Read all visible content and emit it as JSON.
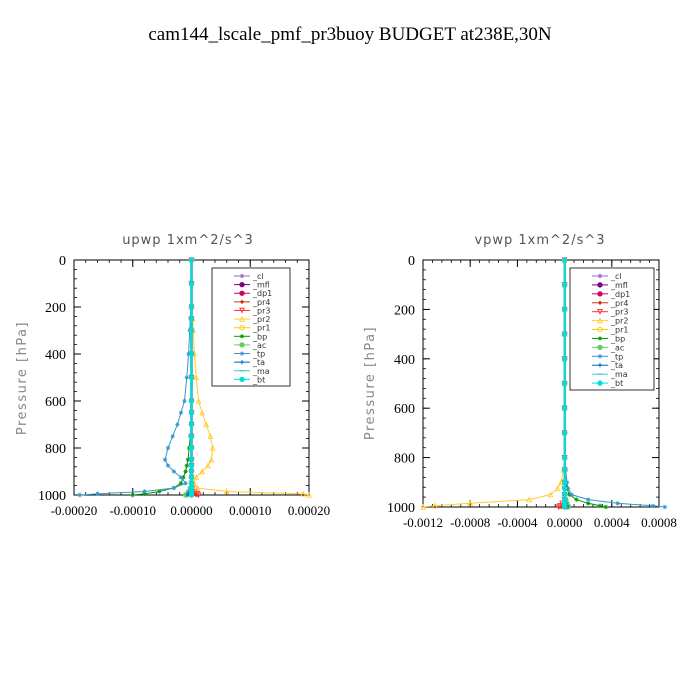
{
  "page_title": "cam144_lscale_pmf_pr3buoy  BUDGET at238E,30N",
  "chart_data": [
    {
      "type": "line",
      "title": "upwp   1xm^2/s^3",
      "ylabel": "Pressure [hPa]",
      "xlabel": "",
      "xlim": [
        -0.0002,
        0.0002
      ],
      "ylim": [
        1000,
        0
      ],
      "xticks": [
        -0.0002,
        -0.0001,
        0.0,
        0.0001,
        0.0002
      ],
      "xtick_labels": [
        "-0.00020",
        "-0.00010",
        "0.00000",
        "0.00010",
        "0.00020"
      ],
      "yticks": [
        0,
        200,
        400,
        600,
        800,
        1000
      ],
      "ytick_labels": [
        "0",
        "200",
        "400",
        "600",
        "800",
        "1000"
      ],
      "grid": false,
      "legend_position": "top-right",
      "y": [
        0,
        100,
        200,
        250,
        300,
        400,
        500,
        600,
        650,
        700,
        750,
        800,
        850,
        875,
        900,
        925,
        950,
        970,
        985,
        995,
        1000
      ],
      "series": [
        {
          "name": "_cl",
          "color": "#9966cc",
          "marker": "star",
          "values": [
            0,
            0,
            0,
            0,
            0,
            0,
            0,
            0,
            0,
            0,
            0,
            0,
            0,
            0,
            0,
            0,
            0,
            0,
            0,
            0,
            0
          ]
        },
        {
          "name": "_mfl",
          "color": "#800080",
          "marker": "circle",
          "values": [
            0,
            0,
            0,
            0,
            0,
            0,
            0,
            0,
            0,
            0,
            0,
            0,
            0,
            0,
            0,
            0,
            0,
            0,
            0,
            0,
            0
          ]
        },
        {
          "name": "_dp1",
          "color": "#cc0066",
          "marker": "circle",
          "values": [
            0,
            0,
            0,
            0,
            0,
            0,
            0,
            0,
            0,
            0,
            0,
            0,
            0,
            0,
            0,
            0,
            0,
            0,
            0,
            0,
            0
          ]
        },
        {
          "name": "_pr4",
          "color": "#cc3300",
          "marker": "diamond",
          "values": [
            0,
            0,
            0,
            0,
            0,
            0,
            0,
            0,
            0,
            0,
            0,
            0,
            0,
            0,
            0,
            0,
            0,
            0,
            2e-06,
            5e-06,
            8e-06
          ]
        },
        {
          "name": "_pr3",
          "color": "#ff3333",
          "marker": "triangle-down",
          "values": [
            0,
            0,
            0,
            0,
            0,
            0,
            0,
            0,
            0,
            0,
            0,
            0,
            0,
            0,
            0,
            0,
            0,
            2e-06,
            6e-06,
            1e-05,
            1.2e-05
          ]
        },
        {
          "name": "_pr2",
          "color": "#ffcc33",
          "marker": "triangle-up",
          "values": [
            0,
            0,
            0,
            2e-06,
            3e-06,
            5e-06,
            8e-06,
            1.2e-05,
            1.8e-05,
            2.5e-05,
            3.2e-05,
            3.6e-05,
            3.4e-05,
            2.8e-05,
            1.8e-05,
            8e-06,
            4e-06,
            1e-05,
            6e-05,
            0.00019,
            0.0002
          ]
        },
        {
          "name": "_pr1",
          "color": "#ffcc00",
          "marker": "circle-open",
          "values": [
            0,
            0,
            0,
            0,
            0,
            0,
            0,
            0,
            0,
            0,
            0,
            0,
            0,
            0,
            0,
            0,
            0,
            0,
            0,
            0,
            0
          ]
        },
        {
          "name": "_bp",
          "color": "#009900",
          "marker": "star",
          "values": [
            0,
            0,
            0,
            0,
            0,
            0,
            0,
            0,
            0,
            0,
            -2e-06,
            -4e-06,
            -6e-06,
            -8e-06,
            -1e-05,
            -1.4e-05,
            -1.8e-05,
            -3e-05,
            -5.5e-05,
            -8e-05,
            -0.0001
          ]
        },
        {
          "name": "_ac",
          "color": "#66cc66",
          "marker": "circle",
          "values": [
            0,
            0,
            0,
            0,
            0,
            0,
            0,
            0,
            0,
            0,
            0,
            0,
            0,
            0,
            0,
            0,
            0,
            -2e-06,
            -5e-06,
            -8e-06,
            -1e-05
          ]
        },
        {
          "name": "_tp",
          "color": "#3399cc",
          "marker": "star",
          "values": [
            0,
            0,
            -1e-06,
            -2e-06,
            -3e-06,
            -5e-06,
            -8e-06,
            -1.2e-05,
            -1.8e-05,
            -2.4e-05,
            -3.2e-05,
            -4e-05,
            -4.5e-05,
            -4e-05,
            -3e-05,
            -1.8e-05,
            -1e-05,
            -3e-05,
            -8e-05,
            -0.00016,
            -0.00019
          ]
        },
        {
          "name": "_ta",
          "color": "#0066cc",
          "marker": "plus",
          "values": [
            0,
            0,
            0,
            0,
            0,
            0,
            0,
            0,
            0,
            0,
            0,
            0,
            0,
            0,
            0,
            0,
            0,
            -1e-06,
            -3e-06,
            -5e-06,
            -6e-06
          ]
        },
        {
          "name": "_ma",
          "color": "#33cccc",
          "marker": "dash",
          "values": [
            0,
            0,
            0,
            0,
            0,
            0,
            0,
            0,
            0,
            0,
            0,
            0,
            0,
            0,
            0,
            0,
            0,
            0,
            0,
            0,
            0
          ]
        },
        {
          "name": "_bt",
          "color": "#00dddd",
          "marker": "circle",
          "values": [
            0,
            0,
            0,
            0,
            0,
            0,
            0,
            0,
            0,
            0,
            0,
            0,
            0,
            0,
            0,
            0,
            0,
            0,
            0,
            0,
            0
          ]
        }
      ]
    },
    {
      "type": "line",
      "title": "vpwp   1xm^2/s^3",
      "ylabel": "Pressure [hPa]",
      "xlabel": "",
      "xlim": [
        -0.0012,
        0.0008
      ],
      "ylim": [
        1000,
        0
      ],
      "xticks": [
        -0.0012,
        -0.0008,
        -0.0004,
        0.0,
        0.0004,
        0.0008
      ],
      "xtick_labels": [
        "-0.0012",
        "-0.0008",
        "-0.0004",
        "0.0000",
        "0.0004",
        "0.0008"
      ],
      "yticks": [
        0,
        200,
        400,
        600,
        800,
        1000
      ],
      "ytick_labels": [
        "0",
        "200",
        "400",
        "600",
        "800",
        "1000"
      ],
      "grid": false,
      "legend_position": "top-right",
      "y": [
        0,
        100,
        200,
        300,
        400,
        500,
        600,
        700,
        800,
        850,
        900,
        925,
        950,
        970,
        985,
        995,
        1000
      ],
      "series": [
        {
          "name": "_cl",
          "color": "#9966cc",
          "marker": "star",
          "values": [
            0,
            0,
            0,
            0,
            0,
            0,
            0,
            0,
            0,
            0,
            0,
            0,
            0,
            0,
            0,
            0,
            0
          ]
        },
        {
          "name": "_mfl",
          "color": "#800080",
          "marker": "circle",
          "values": [
            0,
            0,
            0,
            0,
            0,
            0,
            0,
            0,
            0,
            0,
            0,
            0,
            0,
            0,
            0,
            0,
            0
          ]
        },
        {
          "name": "_dp1",
          "color": "#cc0066",
          "marker": "circle",
          "values": [
            0,
            0,
            0,
            0,
            0,
            0,
            0,
            0,
            0,
            0,
            0,
            0,
            0,
            0,
            0,
            0,
            0
          ]
        },
        {
          "name": "_pr4",
          "color": "#cc3300",
          "marker": "diamond",
          "values": [
            0,
            0,
            0,
            0,
            0,
            0,
            0,
            0,
            0,
            0,
            0,
            0,
            0,
            0,
            0,
            -2e-05,
            -3e-05
          ]
        },
        {
          "name": "_pr3",
          "color": "#ff3333",
          "marker": "triangle-down",
          "values": [
            0,
            0,
            0,
            0,
            0,
            0,
            0,
            0,
            0,
            0,
            0,
            0,
            0,
            0,
            -2e-05,
            -4e-05,
            -5e-05
          ]
        },
        {
          "name": "_pr2",
          "color": "#ffcc33",
          "marker": "triangle-up",
          "values": [
            0,
            0,
            0,
            0,
            0,
            0,
            0,
            0,
            0,
            -1e-05,
            -3e-05,
            -6e-05,
            -0.00012,
            -0.0003,
            -0.0008,
            -0.0011,
            -0.0012
          ]
        },
        {
          "name": "_pr1",
          "color": "#ffcc00",
          "marker": "circle-open",
          "values": [
            0,
            0,
            0,
            0,
            0,
            0,
            0,
            0,
            0,
            0,
            0,
            0,
            0,
            0,
            0,
            0,
            0
          ]
        },
        {
          "name": "_bp",
          "color": "#009900",
          "marker": "star",
          "values": [
            0,
            0,
            0,
            0,
            0,
            0,
            0,
            0,
            0,
            0,
            1e-05,
            2e-05,
            4e-05,
            0.0001,
            0.0002,
            0.0003,
            0.00035
          ]
        },
        {
          "name": "_ac",
          "color": "#66cc66",
          "marker": "circle",
          "values": [
            0,
            0,
            0,
            0,
            0,
            0,
            0,
            0,
            0,
            0,
            0,
            0,
            0,
            1e-05,
            2e-05,
            3e-05,
            3e-05
          ]
        },
        {
          "name": "_tp",
          "color": "#3399cc",
          "marker": "star",
          "values": [
            0,
            0,
            0,
            0,
            0,
            0,
            0,
            0,
            5e-06,
            1e-05,
            2e-05,
            3e-05,
            6e-05,
            0.0002,
            0.00045,
            0.00075,
            0.00085
          ]
        },
        {
          "name": "_ta",
          "color": "#0066cc",
          "marker": "plus",
          "values": [
            0,
            0,
            0,
            0,
            0,
            0,
            0,
            0,
            0,
            0,
            0,
            0,
            0,
            0,
            1e-05,
            2e-05,
            2e-05
          ]
        },
        {
          "name": "_ma",
          "color": "#33cccc",
          "marker": "dash",
          "values": [
            0,
            0,
            0,
            0,
            0,
            0,
            0,
            0,
            0,
            0,
            0,
            0,
            0,
            0,
            0,
            0,
            0
          ]
        },
        {
          "name": "_bt",
          "color": "#00dddd",
          "marker": "circle",
          "values": [
            0,
            0,
            0,
            0,
            0,
            0,
            0,
            0,
            0,
            0,
            0,
            0,
            0,
            0,
            0,
            0,
            0
          ]
        }
      ]
    }
  ]
}
